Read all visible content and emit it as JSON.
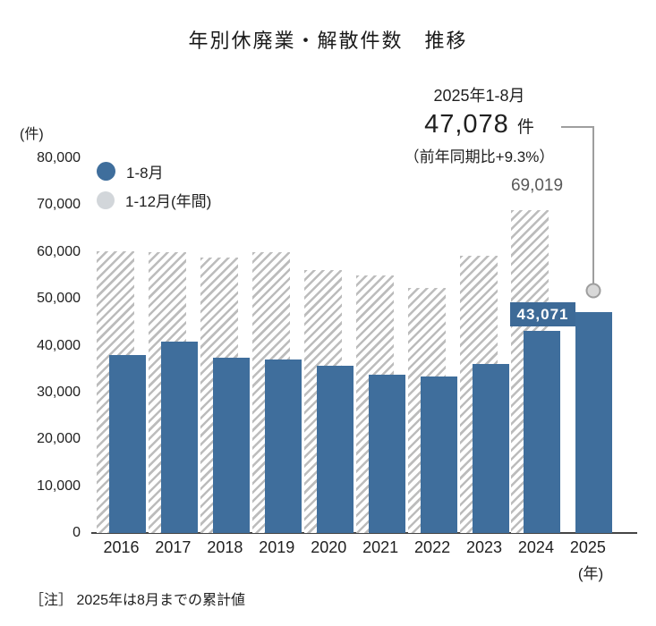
{
  "page": {
    "title": "年別休廃業・解散件数　推移",
    "footnote": "［注］ 2025年は8月までの累計値"
  },
  "colors": {
    "bar_blue": "#3f6e9c",
    "hatch_gray": "#bcbcbc",
    "bar_label_box": "#3d6a97",
    "bar_label_text": "#ffffff",
    "annual_label_gray": "#595959",
    "connector_gray": "#9e9e9e",
    "marker_fill": "#d8d8d8",
    "legend_gray_dot": "#d2d6da",
    "axis_line": "#444444",
    "text": "#1f1f1f"
  },
  "callout": {
    "period": "2025年1-8月",
    "value": "47,078",
    "unit": "件",
    "comparison": "（前年同期比+9.3%）"
  },
  "chart_data": {
    "type": "bar",
    "title": "年別休廃業・解散件数　推移",
    "unit": "件",
    "grid": false,
    "legend_position": "top-left",
    "categories": [
      "2016",
      "2017",
      "2018",
      "2019",
      "2020",
      "2021",
      "2022",
      "2023",
      "2024",
      "2025"
    ],
    "series": [
      {
        "name": "1-8月",
        "style": "solid-blue",
        "values": [
          37900,
          40800,
          37400,
          37000,
          35700,
          33800,
          33400,
          36100,
          43071,
          47078
        ]
      },
      {
        "name": "1-12月(年間)",
        "style": "gray-diagonal-hatch",
        "values": [
          60100,
          59900,
          58800,
          60000,
          56100,
          55000,
          52300,
          59200,
          69019,
          null
        ]
      }
    ],
    "ylim": [
      0,
      80000
    ],
    "y_tick_step": 10000,
    "y_ticks": [
      {
        "value": 80000,
        "label": "80,000"
      },
      {
        "value": 70000,
        "label": "70,000"
      },
      {
        "value": 60000,
        "label": "60,000"
      },
      {
        "value": 50000,
        "label": "50,000"
      },
      {
        "value": 40000,
        "label": "40,000"
      },
      {
        "value": 30000,
        "label": "30,000"
      },
      {
        "value": 20000,
        "label": "20,000"
      },
      {
        "value": 10000,
        "label": "10,000"
      },
      {
        "value": 0,
        "label": "0"
      }
    ],
    "y_axis_unit": "(件)",
    "x_axis_unit": "(年)",
    "bar_labels": [
      {
        "category": "2024",
        "series": "1-12月(年間)",
        "text": "69,019"
      },
      {
        "category": "2024",
        "series": "1-8月",
        "text": "43,071"
      }
    ]
  }
}
